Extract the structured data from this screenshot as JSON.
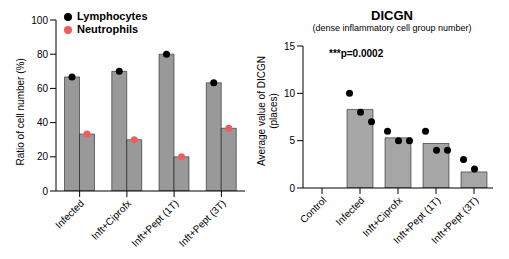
{
  "chart_data": [
    {
      "type": "bar",
      "categories": [
        "Infected",
        "Inft+Ciprofx",
        "Inft+Pept (1T)",
        "Inft+Pept (3T)"
      ],
      "series": [
        {
          "name": "Lymphocytes",
          "color": "#000000",
          "values": [
            66.7,
            70,
            80,
            63.3
          ]
        },
        {
          "name": "Neutrophils",
          "color": "#f25c5c",
          "values": [
            33.3,
            30,
            20,
            36.7
          ]
        }
      ],
      "ylabel": "Ratio of cell number (%)",
      "ylim": [
        0,
        100
      ],
      "yticks": [
        0,
        20,
        40,
        60,
        80,
        100
      ],
      "legend": "top-left",
      "marker": "circle"
    },
    {
      "type": "bar",
      "title": "DICGN",
      "subtitle": "(dense inflammatory cell group number)",
      "annotation": "***p=0.0002",
      "categories": [
        "Control",
        "Infected",
        "Inft+Ciprofx",
        "Inft+Pept (1T)",
        "Inft+Pept (3T)"
      ],
      "values": [
        0,
        8.3,
        5.3,
        4.7,
        1.7
      ],
      "points": [
        [
          0,
          0,
          0
        ],
        [
          10,
          8,
          7
        ],
        [
          6,
          5,
          5
        ],
        [
          6,
          4,
          4
        ],
        [
          3,
          2,
          0
        ]
      ],
      "color": "#a6a6a6",
      "ylabel": "Average value of DICGN (places)",
      "ylim": [
        0,
        15
      ],
      "yticks": [
        0,
        5,
        10,
        15
      ],
      "marker": "circle"
    }
  ]
}
